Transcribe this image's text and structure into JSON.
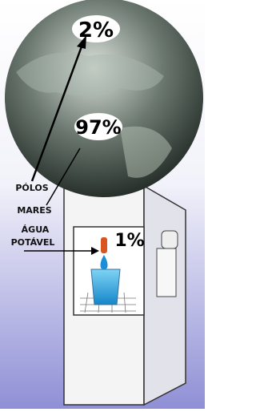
{
  "globe": {
    "poles_percent": "2%",
    "seas_percent": "97%"
  },
  "labels": {
    "poles": "PÓLOS",
    "seas": "MARES",
    "drinking_water": [
      "ÁGUA",
      "POTÁVEL"
    ]
  },
  "cooler": {
    "drinking_percent": "1%"
  }
}
